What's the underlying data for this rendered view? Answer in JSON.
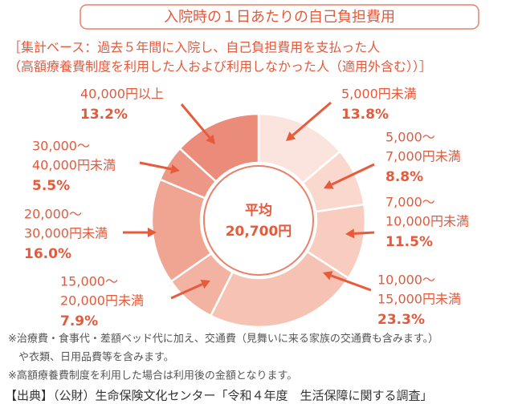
{
  "chart_data": {
    "type": "pie",
    "title": "入院時の１日あたりの自己負担費用",
    "subtitle": [
      "［集計ベース：過去５年間に入院し、自己負担費用を支払った人",
      "（高額療養費制度を利用した人および利用しなかった人（適用外含む））］"
    ],
    "center_label": [
      "平均",
      "20,700円"
    ],
    "categories": [
      [
        "5,000円未満"
      ],
      [
        "5,000〜",
        "7,000円未満"
      ],
      [
        "7,000〜",
        "10,000円未満"
      ],
      [
        "10,000〜",
        "15,000円未満"
      ],
      [
        "15,000〜",
        "20,000円未満"
      ],
      [
        "20,000〜",
        "30,000円未満"
      ],
      [
        "30,000〜",
        "40,000円未満"
      ],
      [
        "40,000円以上"
      ]
    ],
    "values": [
      13.8,
      8.8,
      11.5,
      23.3,
      7.9,
      16.0,
      5.5,
      13.2
    ],
    "value_labels": [
      "13.8%",
      "8.8%",
      "11.5%",
      "23.3%",
      "7.9%",
      "16.0%",
      "5.5%",
      "13.2%"
    ],
    "colors": [
      "#fbe4dd",
      "#fad8ce",
      "#f8cdc0",
      "#f6c2b3",
      "#f3b3a3",
      "#f0a593",
      "#ed9886",
      "#eb8c7a"
    ],
    "notes": [
      "※治療費・食事代・差額ベッド代に加え、交通費（見舞いに来る家族の交通費も含みます。）",
      "　や衣類、日用品費等を含みます。",
      "※高額療養費制度を利用した場合は利用後の金額となります。"
    ],
    "source": "【出典】（公財）生命保険文化センター「令和４年度　生活保障に関する調査」"
  }
}
